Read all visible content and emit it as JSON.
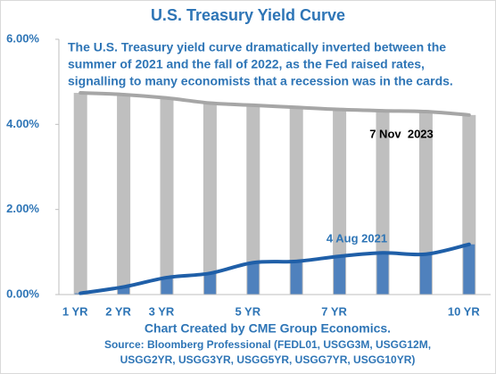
{
  "chart_data": {
    "type": "bar",
    "title": "U.S. Treasury Yield Curve",
    "annotations": [
      "The U.S. Treasury yield curve dramatically inverted between the",
      "summer of 2021 and the fall of 2022, as the Fed raised rates,",
      "signalling to many economists that a recession was in the cards."
    ],
    "footer": [
      "Chart Created by CME Group Economics.",
      "Source:  Bloomberg Professional (FEDL01, USGG3M, USGG12M,",
      "USGG2YR, USGG3YR, USGG5YR, USGG7YR, USGG10YR)"
    ],
    "categories": [
      "1 YR",
      "2 YR",
      "3 YR",
      null,
      "5 YR",
      null,
      "7 YR",
      null,
      null,
      "10 YR"
    ],
    "series": [
      {
        "name": "7 Nov  2023",
        "color": "#bfbfbf",
        "line_color": "#a6a6a6",
        "values": [
          4.74,
          4.7,
          4.62,
          4.5,
          4.45,
          4.4,
          4.35,
          4.32,
          4.3,
          4.22
        ]
      },
      {
        "name": "4 Aug 2021",
        "color": "#4f81bd",
        "line_color": "#1f5fa8",
        "values": [
          0.03,
          0.18,
          0.4,
          0.5,
          0.75,
          0.78,
          0.9,
          0.98,
          0.95,
          1.18
        ]
      }
    ],
    "ylim": [
      0,
      6
    ],
    "yticks": [
      {
        "value": 0,
        "label": "0.00%"
      },
      {
        "value": 2,
        "label": "2.00%"
      },
      {
        "value": 4,
        "label": "4.00%"
      },
      {
        "value": 6,
        "label": "6.00%"
      }
    ]
  }
}
